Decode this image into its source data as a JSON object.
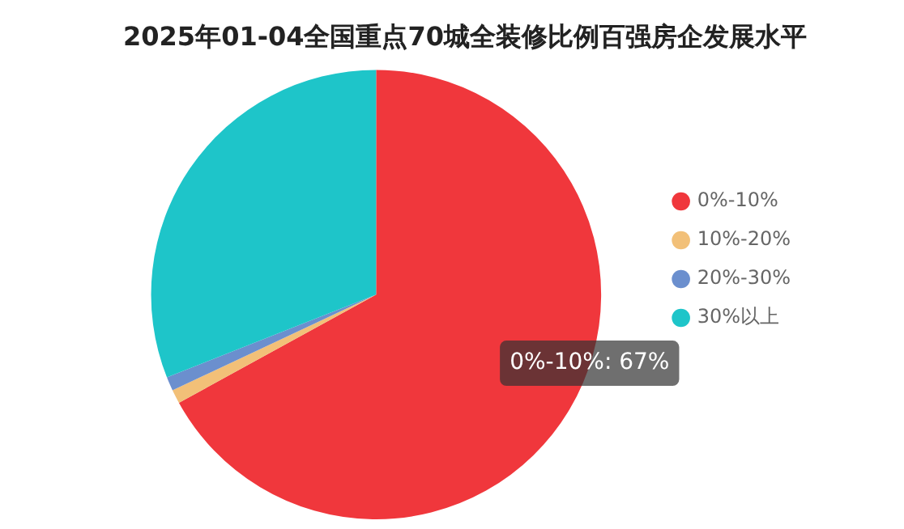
{
  "chart_data": {
    "type": "pie",
    "title": "2025年01-04全国重点70城全装修比例百强房企发展水平",
    "categories": [
      "0%-10%",
      "10%-20%",
      "20%-30%",
      "30%以上"
    ],
    "values": [
      67,
      1,
      1,
      31
    ],
    "colors": [
      "#f0373c",
      "#f2c078",
      "#6b8fce",
      "#1ec5c9"
    ],
    "value_labels": [
      "0%-10%: 67%",
      null,
      null,
      null
    ],
    "legend": "right"
  }
}
